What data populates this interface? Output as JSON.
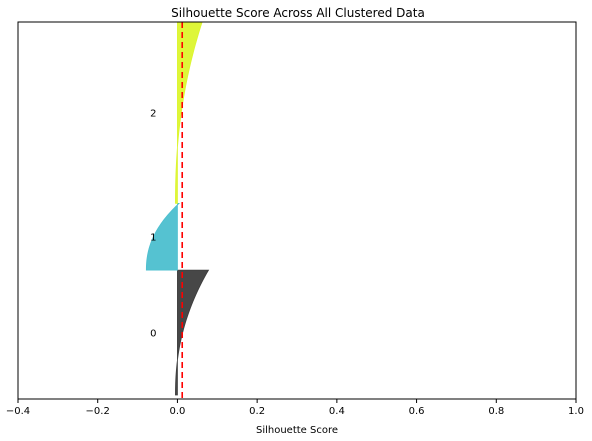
{
  "chart_data": {
    "type": "area",
    "title": "Silhouette Score Across All Clustered Data",
    "xlabel": "Silhouette Score",
    "ylabel": "",
    "xlim": [
      -0.4,
      1.0
    ],
    "x_ticks": [
      -0.4,
      -0.2,
      0.0,
      0.2,
      0.4,
      0.6,
      0.8,
      1.0
    ],
    "x_tick_labels": [
      "−0.4",
      "−0.2",
      "0.0",
      "0.2",
      "0.4",
      "0.6",
      "0.8",
      "1.0"
    ],
    "y_ticks": [],
    "grid": false,
    "average_silhouette_score": 0.012,
    "average_line_color": "#ff0000",
    "clusters": [
      {
        "label": "0",
        "color": "#3d3d3d",
        "sample_count": 365,
        "min_score": -0.005,
        "max_score": 0.078
      },
      {
        "label": "1",
        "color": "#4cbfcf",
        "sample_count": 195,
        "min_score": -0.078,
        "max_score": 0.004
      },
      {
        "label": "2",
        "color": "#dcf52e",
        "sample_count": 530,
        "min_score": -0.005,
        "max_score": 0.062
      }
    ]
  }
}
